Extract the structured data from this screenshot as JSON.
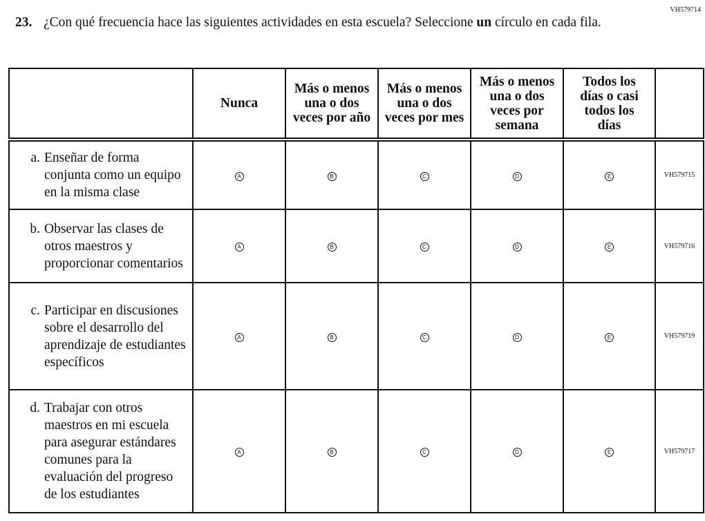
{
  "question_id": "VH579714",
  "question": {
    "number": "23.",
    "text_before": "¿Con qué frecuencia hace las siguientes actividades en esta escuela? Seleccione ",
    "text_bold": "un",
    "text_after": " círculo en cada fila."
  },
  "columns": [
    "Nunca",
    "Más o menos una o dos veces por año",
    "Más o menos una o dos veces por mes",
    "Más o menos una o dos veces por semana",
    "Todos los días o casi todos los días"
  ],
  "bubble_letters": [
    "A",
    "B",
    "C",
    "D",
    "E"
  ],
  "rows": [
    {
      "letter": "a.",
      "text": "Enseñar de forma conjunta como un equipo en la misma clase",
      "code": "VH579715"
    },
    {
      "letter": "b.",
      "text": "Observar las clases de otros maestros y proporcionar comentarios",
      "code": "VH579716"
    },
    {
      "letter": "c.",
      "text": "Participar en discusiones sobre el desarrollo del aprendizaje de estudiantes específicos",
      "code": "VH579719"
    },
    {
      "letter": "d.",
      "text": "Trabajar con otros maestros en mi escuela para asegurar estándares comunes para la evaluación del progreso de los estudiantes",
      "code": "VH579717"
    }
  ]
}
